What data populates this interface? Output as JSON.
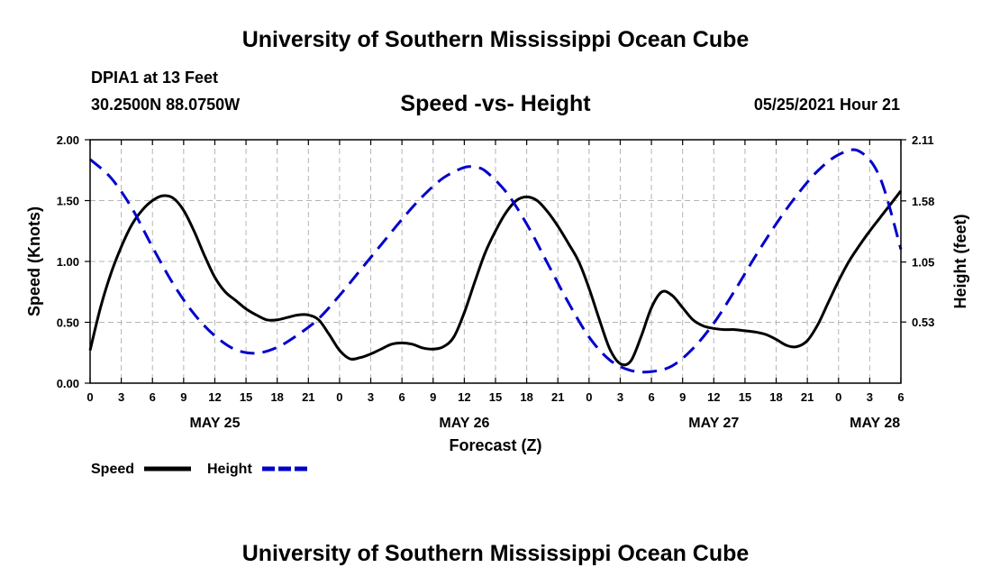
{
  "header": {
    "title": "University of Southern Mississippi Ocean Cube",
    "station": "DPIA1 at 13 Feet",
    "coords": "30.2500N  88.0750W",
    "timestamp": "05/25/2021 Hour 21",
    "footer_title": "University of Southern Mississippi Ocean Cube"
  },
  "chart_data": {
    "type": "line",
    "title": "Speed -vs- Height",
    "xlabel": "Forecast (Z)",
    "ylabel": "Speed (Knots)",
    "y2label": "Height (feet)",
    "x_unit": "hours from 0Z May 25",
    "xlim": [
      0,
      78
    ],
    "ylim": [
      0,
      2.0
    ],
    "y2lim": [
      0,
      2.11
    ],
    "x_ticks": [
      0,
      3,
      6,
      9,
      12,
      15,
      18,
      21,
      24,
      27,
      30,
      33,
      36,
      39,
      42,
      45,
      48,
      51,
      54,
      57,
      60,
      63,
      66,
      69,
      72,
      75,
      78
    ],
    "x_tick_labels": [
      "0",
      "3",
      "6",
      "9",
      "12",
      "15",
      "18",
      "21",
      "0",
      "3",
      "6",
      "9",
      "12",
      "15",
      "18",
      "21",
      "0",
      "3",
      "6",
      "9",
      "12",
      "15",
      "18",
      "21",
      "0",
      "3",
      "6"
    ],
    "y_ticks": [
      0,
      0.5,
      1.0,
      1.5,
      2.0
    ],
    "y_tick_labels": [
      "0.00",
      "0.50",
      "1.00",
      "1.50",
      "2.00"
    ],
    "y2_ticks": [
      0.53,
      1.05,
      1.58,
      2.11
    ],
    "y2_tick_labels": [
      "0.53",
      "1.05",
      "1.58",
      "2.11"
    ],
    "date_labels": [
      {
        "x": 12,
        "label": "MAY 25"
      },
      {
        "x": 36,
        "label": "MAY 26"
      },
      {
        "x": 60,
        "label": "MAY 27"
      },
      {
        "x": 75.5,
        "label": "MAY 28"
      }
    ],
    "legend": [
      {
        "name": "Speed",
        "color": "#000000",
        "dash": "solid"
      },
      {
        "name": "Height",
        "color": "#0000cc",
        "dash": "dashed"
      }
    ],
    "grid": true,
    "series": [
      {
        "name": "Speed",
        "axis": "left",
        "color": "#000000",
        "x": [
          0,
          1,
          2,
          3,
          4,
          5,
          6,
          7,
          8,
          9,
          10,
          11,
          12,
          13,
          14,
          15,
          16,
          17,
          18,
          19,
          20,
          21,
          22,
          23,
          24,
          25,
          26,
          27,
          28,
          29,
          30,
          31,
          32,
          33,
          34,
          35,
          36,
          37,
          38,
          39,
          40,
          41,
          42,
          43,
          44,
          45,
          46,
          47,
          48,
          49,
          50,
          51,
          52,
          53,
          54,
          55,
          56,
          57,
          58,
          59,
          60,
          61,
          62,
          63,
          64,
          65,
          66,
          67,
          68,
          69,
          70,
          71,
          72,
          73,
          74,
          75,
          76,
          77,
          78
        ],
        "values": [
          0.27,
          0.62,
          0.9,
          1.12,
          1.3,
          1.42,
          1.5,
          1.54,
          1.52,
          1.42,
          1.25,
          1.05,
          0.87,
          0.75,
          0.68,
          0.61,
          0.56,
          0.52,
          0.52,
          0.54,
          0.56,
          0.56,
          0.52,
          0.4,
          0.27,
          0.2,
          0.21,
          0.24,
          0.28,
          0.32,
          0.33,
          0.32,
          0.29,
          0.28,
          0.3,
          0.38,
          0.58,
          0.83,
          1.07,
          1.25,
          1.4,
          1.5,
          1.53,
          1.5,
          1.41,
          1.29,
          1.15,
          1.0,
          0.78,
          0.52,
          0.28,
          0.16,
          0.18,
          0.38,
          0.62,
          0.75,
          0.72,
          0.62,
          0.52,
          0.47,
          0.45,
          0.44,
          0.44,
          0.43,
          0.42,
          0.4,
          0.36,
          0.31,
          0.3,
          0.35,
          0.48,
          0.66,
          0.84,
          1.0,
          1.13,
          1.25,
          1.36,
          1.47,
          1.58
        ]
      },
      {
        "name": "Height",
        "axis": "right",
        "color": "#0000cc",
        "x": [
          0,
          2,
          4,
          6,
          8,
          10,
          12,
          14,
          16,
          18,
          20,
          22,
          24,
          26,
          28,
          30,
          32,
          34,
          36,
          37,
          38,
          40,
          42,
          44,
          46,
          48,
          50,
          52,
          54,
          56,
          58,
          60,
          62,
          64,
          66,
          68,
          70,
          72,
          74,
          76,
          78
        ],
        "values": [
          1.94,
          1.78,
          1.52,
          1.18,
          0.86,
          0.6,
          0.41,
          0.29,
          0.26,
          0.31,
          0.42,
          0.56,
          0.76,
          0.98,
          1.2,
          1.42,
          1.62,
          1.78,
          1.87,
          1.87,
          1.84,
          1.66,
          1.38,
          1.04,
          0.7,
          0.4,
          0.2,
          0.11,
          0.1,
          0.15,
          0.3,
          0.52,
          0.8,
          1.1,
          1.38,
          1.63,
          1.84,
          1.98,
          2.01,
          1.78,
          1.16
        ]
      }
    ]
  }
}
